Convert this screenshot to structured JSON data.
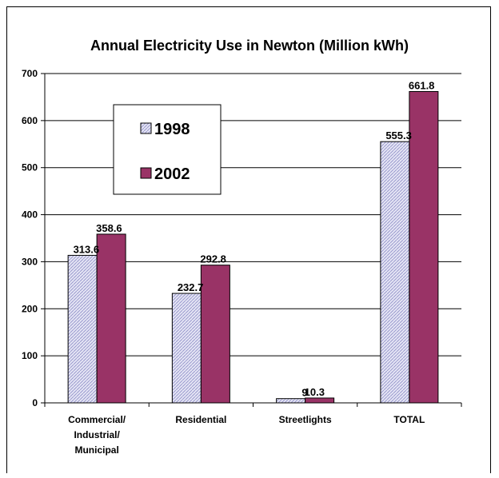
{
  "chart_data": {
    "type": "bar",
    "title": "Annual Electricity Use in Newton (Million kWh)",
    "xlabel": "",
    "ylabel": "",
    "ylim": [
      0,
      700
    ],
    "yticks": [
      0,
      100,
      200,
      300,
      400,
      500,
      600,
      700
    ],
    "grid": "horizontal",
    "legend_position": "top-left",
    "categories": [
      "Commercial/ Industrial/ Municipal",
      "Residential",
      "Streetlights",
      "TOTAL"
    ],
    "series": [
      {
        "name": "1998",
        "values": [
          313.6,
          232.7,
          9,
          555.3
        ],
        "labels": [
          "313.6",
          "232.7",
          "9",
          "555.3"
        ],
        "color": "#d4d4ee"
      },
      {
        "name": "2002",
        "values": [
          358.6,
          292.8,
          10.3,
          661.8
        ],
        "labels": [
          "358.6",
          "292.8",
          "10.3",
          "661.8"
        ],
        "color": "#993366"
      }
    ]
  }
}
